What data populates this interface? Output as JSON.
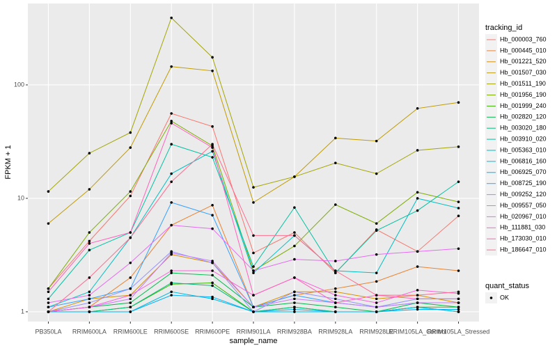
{
  "chart_data": {
    "type": "line",
    "x_label": "sample_name",
    "y_label": "FPKM + 1",
    "log_y": true,
    "grid": true,
    "ylim": [
      0.82,
      522
    ],
    "yticks": [
      1,
      10,
      100
    ],
    "legend_title": "tracking_id",
    "legend2_title": "quant_status",
    "legend2_labels": [
      "OK"
    ],
    "categories": [
      "PB350LA",
      "RRIM600LA",
      "RRIM600LE",
      "RRIM600SE",
      "RRIM600PE",
      "RRIM901LA",
      "RRIM928BA",
      "RRIM928LA",
      "RRIM928LE",
      "RRIM105LA_Control",
      "RRIM105LA_Stressed"
    ],
    "series": [
      {
        "name": "Hb_000003_760",
        "color": "#F8766D",
        "values": [
          1.6,
          4.2,
          10.5,
          56,
          43,
          3.3,
          5,
          2.2,
          5.3,
          3.4,
          7
        ]
      },
      {
        "name": "Hb_000445_010",
        "color": "#EA8331",
        "values": [
          1,
          1.1,
          2,
          5.8,
          8.7,
          1.1,
          1.4,
          1.6,
          1.85,
          2.5,
          2.3
        ]
      },
      {
        "name": "Hb_001221_520",
        "color": "#D89000",
        "values": [
          1,
          1.3,
          1.4,
          3.2,
          2.7,
          1.1,
          1.5,
          1.5,
          1.3,
          1.4,
          1.2
        ]
      },
      {
        "name": "Hb_001507_030",
        "color": "#C09B00",
        "values": [
          6,
          12,
          28,
          145,
          133,
          9.2,
          15.5,
          34,
          32,
          62,
          70
        ]
      },
      {
        "name": "Hb_001511_190",
        "color": "#A3A500",
        "values": [
          11.5,
          25,
          38,
          390,
          175,
          12.5,
          15.5,
          20.5,
          16.5,
          26.5,
          28.5
        ]
      },
      {
        "name": "Hb_001956_190",
        "color": "#7CAE00",
        "values": [
          1.6,
          5,
          11.5,
          48,
          29,
          2.3,
          3.8,
          8.8,
          6,
          11.3,
          9.3
        ]
      },
      {
        "name": "Hb_001999_240",
        "color": "#39B600",
        "values": [
          1,
          1,
          1.1,
          1.75,
          1.8,
          1,
          1.1,
          1,
          1,
          1.1,
          1.1
        ]
      },
      {
        "name": "Hb_002820_120",
        "color": "#00BB4E",
        "values": [
          1,
          1.1,
          1.2,
          2.2,
          2.1,
          1.1,
          1.2,
          1.1,
          1,
          1.2,
          1.1
        ]
      },
      {
        "name": "Hb_003020_180",
        "color": "#00BF7D",
        "values": [
          1,
          1,
          1.1,
          1.8,
          1.7,
          1,
          1.1,
          1,
          1,
          1.1,
          1
        ]
      },
      {
        "name": "Hb_003910_020",
        "color": "#00C1A3",
        "values": [
          1.3,
          3.5,
          5,
          30,
          23,
          2.5,
          8.3,
          2.2,
          5.2,
          7.8,
          14
        ]
      },
      {
        "name": "Hb_005363_010",
        "color": "#00BFC4",
        "values": [
          1.1,
          1.5,
          4.5,
          16.5,
          26,
          2.2,
          4.7,
          2.3,
          2.2,
          10,
          8.2
        ]
      },
      {
        "name": "Hb_006816_160",
        "color": "#00BAE0",
        "values": [
          1,
          1,
          1,
          1.5,
          1.3,
          1,
          1,
          1,
          1,
          1.1,
          1
        ]
      },
      {
        "name": "Hb_006925_070",
        "color": "#00B0F6",
        "values": [
          1,
          1,
          1,
          1.4,
          1.35,
          1,
          1.05,
          1,
          1,
          1.05,
          1.05
        ]
      },
      {
        "name": "Hb_008725_190",
        "color": "#35A2FF",
        "values": [
          1.1,
          1.3,
          1.6,
          9.2,
          7.1,
          1.1,
          1.4,
          1.2,
          1.1,
          1.2,
          1.2
        ]
      },
      {
        "name": "Hb_009252_120",
        "color": "#9590FF",
        "values": [
          1,
          1.2,
          1.6,
          3.4,
          2.7,
          1,
          1.5,
          1.3,
          1.1,
          1.3,
          1.3
        ]
      },
      {
        "name": "Hb_009557_050",
        "color": "#C77CFF",
        "values": [
          1,
          1.1,
          1.3,
          3.3,
          2.8,
          1.1,
          1.3,
          1.2,
          1.1,
          1.2,
          1.2
        ]
      },
      {
        "name": "Hb_020967_010",
        "color": "#E76BF3",
        "values": [
          1.2,
          1.4,
          2.7,
          5.8,
          5.4,
          2.3,
          2.9,
          2.8,
          3.2,
          3.4,
          3.6
        ]
      },
      {
        "name": "Hb_111881_030",
        "color": "#FA62DB",
        "values": [
          1,
          1.1,
          1.4,
          2.3,
          2.3,
          1.4,
          2,
          1.4,
          1.2,
          1.55,
          1.45
        ]
      },
      {
        "name": "Hb_173030_010",
        "color": "#FF62BC",
        "values": [
          1.5,
          4,
          5,
          46,
          28,
          1.4,
          2,
          1.2,
          1.4,
          1.3,
          1.3
        ]
      },
      {
        "name": "Hb_186647_010",
        "color": "#FF6C91",
        "values": [
          1,
          2,
          4.5,
          14,
          30,
          4.7,
          4.7,
          2.3,
          1.4,
          1.4,
          1.5
        ]
      }
    ]
  }
}
